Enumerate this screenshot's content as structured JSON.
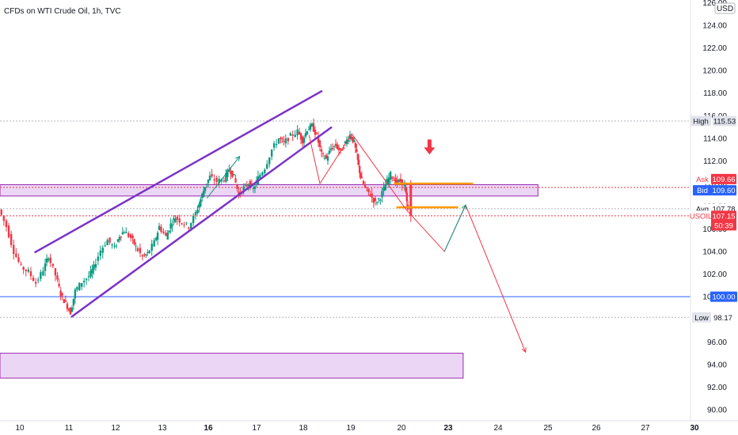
{
  "chart_data": {
    "type": "candlestick",
    "title": "CFDs on WTI Crude Oil, 1h, TVC",
    "currency": "USD",
    "y_axis_ticks": [
      90,
      92,
      94,
      96,
      98,
      100,
      102,
      104,
      106,
      108,
      110,
      112,
      114,
      116,
      118,
      120,
      122,
      124,
      126
    ],
    "y_tick_labels": [
      "90.00",
      "92.00",
      "94.00",
      "96.00",
      "98.00",
      "100.00",
      "102.00",
      "104.00",
      "106.00",
      "108.00",
      "110.00",
      "112.00",
      "114.00",
      "116.00",
      "118.00",
      "120.00",
      "122.00",
      "124.00",
      "126.00"
    ],
    "ylim": [
      89,
      126.5
    ],
    "x_axis_ticks": [
      {
        "label": "10",
        "day": 10,
        "bold": false
      },
      {
        "label": "11",
        "day": 11,
        "bold": false
      },
      {
        "label": "12",
        "day": 12,
        "bold": false
      },
      {
        "label": "13",
        "day": 13,
        "bold": false
      },
      {
        "label": "16",
        "day": 16,
        "bold": true
      },
      {
        "label": "17",
        "day": 17,
        "bold": false
      },
      {
        "label": "18",
        "day": 18,
        "bold": false
      },
      {
        "label": "19",
        "day": 19,
        "bold": false
      },
      {
        "label": "20",
        "day": 20,
        "bold": false
      },
      {
        "label": "23",
        "day": 23,
        "bold": true
      },
      {
        "label": "24",
        "day": 24,
        "bold": false
      },
      {
        "label": "25",
        "day": 25,
        "bold": false
      },
      {
        "label": "26",
        "day": 26,
        "bold": false
      },
      {
        "label": "27",
        "day": 27,
        "bold": false
      },
      {
        "label": "30",
        "day": 30,
        "bold": true
      }
    ],
    "price_series": [
      {
        "day": 9.6,
        "price": 107.7
      },
      {
        "day": 9.75,
        "price": 106.2
      },
      {
        "day": 9.9,
        "price": 104.0
      },
      {
        "day": 10.05,
        "price": 102.6
      },
      {
        "day": 10.2,
        "price": 102.2
      },
      {
        "day": 10.35,
        "price": 101.2
      },
      {
        "day": 10.5,
        "price": 102.4
      },
      {
        "day": 10.6,
        "price": 103.6
      },
      {
        "day": 10.75,
        "price": 101.9
      },
      {
        "day": 10.85,
        "price": 100.2
      },
      {
        "day": 10.95,
        "price": 99.4
      },
      {
        "day": 11.05,
        "price": 98.6
      },
      {
        "day": 11.15,
        "price": 100.5
      },
      {
        "day": 11.3,
        "price": 101.3
      },
      {
        "day": 11.45,
        "price": 101.8
      },
      {
        "day": 11.55,
        "price": 102.6
      },
      {
        "day": 11.7,
        "price": 104.1
      },
      {
        "day": 11.85,
        "price": 105.0
      },
      {
        "day": 12.0,
        "price": 104.3
      },
      {
        "day": 12.1,
        "price": 105.4
      },
      {
        "day": 12.2,
        "price": 105.8
      },
      {
        "day": 12.35,
        "price": 105.2
      },
      {
        "day": 12.45,
        "price": 104.4
      },
      {
        "day": 12.6,
        "price": 103.5
      },
      {
        "day": 12.7,
        "price": 103.8
      },
      {
        "day": 12.85,
        "price": 104.8
      },
      {
        "day": 12.95,
        "price": 106.2
      },
      {
        "day": 13.1,
        "price": 105.3
      },
      {
        "day": 13.2,
        "price": 106.4
      },
      {
        "day": 13.3,
        "price": 107.0
      },
      {
        "day": 13.45,
        "price": 106.6
      },
      {
        "day": 13.6,
        "price": 106.2
      },
      {
        "day": 13.75,
        "price": 107.4
      },
      {
        "day": 13.85,
        "price": 108.6
      },
      {
        "day": 13.95,
        "price": 109.8
      },
      {
        "day": 14.05,
        "price": 110.6
      },
      {
        "day": 14.2,
        "price": 110.2
      },
      {
        "day": 14.35,
        "price": 110.4
      },
      {
        "day": 14.45,
        "price": 111.3
      },
      {
        "day": 14.55,
        "price": 110.6
      },
      {
        "day": 14.65,
        "price": 109.0
      },
      {
        "day": 14.75,
        "price": 109.6
      },
      {
        "day": 14.85,
        "price": 110.0
      },
      {
        "day": 14.95,
        "price": 109.5
      },
      {
        "day": 15.05,
        "price": 110.5
      },
      {
        "day": 15.2,
        "price": 111.4
      },
      {
        "day": 15.35,
        "price": 113.0
      },
      {
        "day": 15.5,
        "price": 114.0
      },
      {
        "day": 15.6,
        "price": 113.6
      },
      {
        "day": 15.75,
        "price": 114.2
      },
      {
        "day": 15.9,
        "price": 114.6
      },
      {
        "day": 16.0,
        "price": 113.8
      },
      {
        "day": 16.1,
        "price": 114.8
      },
      {
        "day": 16.2,
        "price": 115.1
      },
      {
        "day": 16.3,
        "price": 114.2
      },
      {
        "day": 16.4,
        "price": 112.6
      },
      {
        "day": 16.5,
        "price": 112.2
      },
      {
        "day": 16.6,
        "price": 113.1
      },
      {
        "day": 16.7,
        "price": 113.4
      },
      {
        "day": 16.8,
        "price": 112.8
      },
      {
        "day": 16.9,
        "price": 113.6
      },
      {
        "day": 17.0,
        "price": 114.3
      },
      {
        "day": 17.08,
        "price": 113.6
      },
      {
        "day": 17.15,
        "price": 112.0
      },
      {
        "day": 17.2,
        "price": 110.6
      },
      {
        "day": 17.3,
        "price": 109.6
      },
      {
        "day": 17.4,
        "price": 109.0
      },
      {
        "day": 17.5,
        "price": 108.3
      },
      {
        "day": 17.6,
        "price": 108.8
      },
      {
        "day": 17.7,
        "price": 109.9
      },
      {
        "day": 17.8,
        "price": 110.8
      },
      {
        "day": 17.9,
        "price": 110.1
      },
      {
        "day": 18.0,
        "price": 110.2
      },
      {
        "day": 18.08,
        "price": 109.8
      },
      {
        "day": 18.15,
        "price": 107.6
      }
    ],
    "channel_upper": {
      "x1": 10.3,
      "y1": 103.9,
      "x2": 16.4,
      "y2": 118.2
    },
    "channel_lower": {
      "x1": 11.05,
      "y1": 98.2,
      "x2": 16.6,
      "y2": 115.0
    },
    "zones": [
      {
        "x1": 9.2,
        "x2": 20.8,
        "y1": 108.9,
        "y2": 109.9
      },
      {
        "x1": 9.2,
        "x2": 19.3,
        "y1": 92.8,
        "y2": 95.0
      }
    ],
    "resistance_lines": [
      {
        "x1": 17.85,
        "x2": 19.5,
        "y": 110.0
      },
      {
        "x1": 17.9,
        "x2": 19.2,
        "y": 107.9
      }
    ],
    "hlines": [
      {
        "name": "high",
        "value": 115.53,
        "color": "#b2b5be",
        "dashed": true
      },
      {
        "name": "ask",
        "value": 109.66,
        "color": "#f23645",
        "dashed": true
      },
      {
        "name": "avg",
        "value": 107.78,
        "color": "#b2b5be",
        "dashed": true
      },
      {
        "name": "last",
        "value": 107.15,
        "color": "#f23645",
        "dashed": true
      },
      {
        "name": "support",
        "value": 100.0,
        "color": "#2962ff",
        "dashed": false
      },
      {
        "name": "low",
        "value": 98.17,
        "color": "#b2b5be",
        "dashed": true
      }
    ],
    "projection_red": [
      {
        "x": 16.12,
        "y": 114.3
      },
      {
        "x": 16.35,
        "y": 110.0
      },
      {
        "x": 17.02,
        "y": 114.4
      },
      {
        "x": 18.1,
        "y": 107.7
      },
      {
        "x": 18.92,
        "y": 104.0
      },
      {
        "x": 19.35,
        "y": 108.1
      },
      {
        "x": 20.55,
        "y": 95.1
      }
    ],
    "projection_green_1": [
      {
        "x": 13.97,
        "y": 108.7
      },
      {
        "x": 14.65,
        "y": 112.4
      }
    ],
    "projection_green_2": [
      {
        "x": 18.92,
        "y": 104.0
      },
      {
        "x": 19.35,
        "y": 108.1
      }
    ],
    "down_arrow": {
      "x": 18.6,
      "y": 113.2
    },
    "price_labels": {
      "high": {
        "label": "High",
        "value": "115.53"
      },
      "ask": {
        "label": "Ask",
        "value": "109.66"
      },
      "bid": {
        "label": "Bid",
        "value": "109.60"
      },
      "avg": {
        "label": "Avg",
        "value": "107.78"
      },
      "symbol": {
        "label": "USOIL",
        "value": "107.15",
        "countdown": "50:39"
      },
      "support": {
        "value": "100.00"
      },
      "low": {
        "label": "Low",
        "value": "98.17"
      }
    },
    "colors": {
      "up": "#089981",
      "down": "#f23645",
      "channel": "#7b32c8",
      "zone_fill": "#e6cdf3",
      "zone_border": "#9c27b0",
      "orange": "#ff9800",
      "support": "#2962ff",
      "arrow_red": "#f23645",
      "proj_red": "#f23645",
      "proj_green": "#089981"
    }
  }
}
